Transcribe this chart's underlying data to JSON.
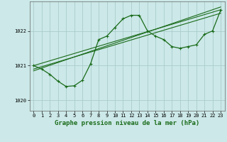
{
  "title": "Graphe pression niveau de la mer (hPa)",
  "bg_color": "#cce8e8",
  "grid_color": "#aacccc",
  "line_color": "#1a6b1a",
  "xlim": [
    -0.5,
    23.5
  ],
  "ylim": [
    1019.7,
    1022.85
  ],
  "yticks": [
    1020,
    1021,
    1022
  ],
  "xticks": [
    0,
    1,
    2,
    3,
    4,
    5,
    6,
    7,
    8,
    9,
    10,
    11,
    12,
    13,
    14,
    15,
    16,
    17,
    18,
    19,
    20,
    21,
    22,
    23
  ],
  "hours": [
    0,
    1,
    2,
    3,
    4,
    5,
    6,
    7,
    8,
    9,
    10,
    11,
    12,
    13,
    14,
    15,
    16,
    17,
    18,
    19,
    20,
    21,
    22,
    23
  ],
  "pressure_main": [
    1021.0,
    1020.9,
    1020.75,
    1020.55,
    1020.4,
    1020.42,
    1020.58,
    1021.05,
    1021.75,
    1021.85,
    1022.1,
    1022.35,
    1022.45,
    1022.45,
    1022.0,
    1021.85,
    1021.75,
    1021.55,
    1021.5,
    1021.55,
    1021.6,
    1021.9,
    1022.0,
    1022.6
  ],
  "trend1": [
    1021.0,
    1021.07,
    1021.14,
    1021.21,
    1021.28,
    1021.35,
    1021.42,
    1021.49,
    1021.56,
    1021.63,
    1021.7,
    1021.77,
    1021.84,
    1021.91,
    1021.98,
    1022.05,
    1022.12,
    1022.19,
    1022.26,
    1022.33,
    1022.4,
    1022.47,
    1022.54,
    1022.61
  ],
  "trend2": [
    1020.9,
    1020.97,
    1021.04,
    1021.11,
    1021.18,
    1021.25,
    1021.32,
    1021.39,
    1021.46,
    1021.53,
    1021.6,
    1021.67,
    1021.74,
    1021.81,
    1021.88,
    1021.95,
    1022.02,
    1022.09,
    1022.16,
    1022.23,
    1022.3,
    1022.37,
    1022.44,
    1022.51
  ],
  "trend3": [
    1020.85,
    1020.93,
    1021.01,
    1021.09,
    1021.17,
    1021.25,
    1021.33,
    1021.41,
    1021.49,
    1021.57,
    1021.65,
    1021.73,
    1021.81,
    1021.89,
    1021.97,
    1022.05,
    1022.13,
    1022.21,
    1022.29,
    1022.37,
    1022.45,
    1022.53,
    1022.61,
    1022.69
  ],
  "ylabel_fontsize": 5.0,
  "xlabel_fontsize": 6.5,
  "tick_fontsize": 5.0
}
